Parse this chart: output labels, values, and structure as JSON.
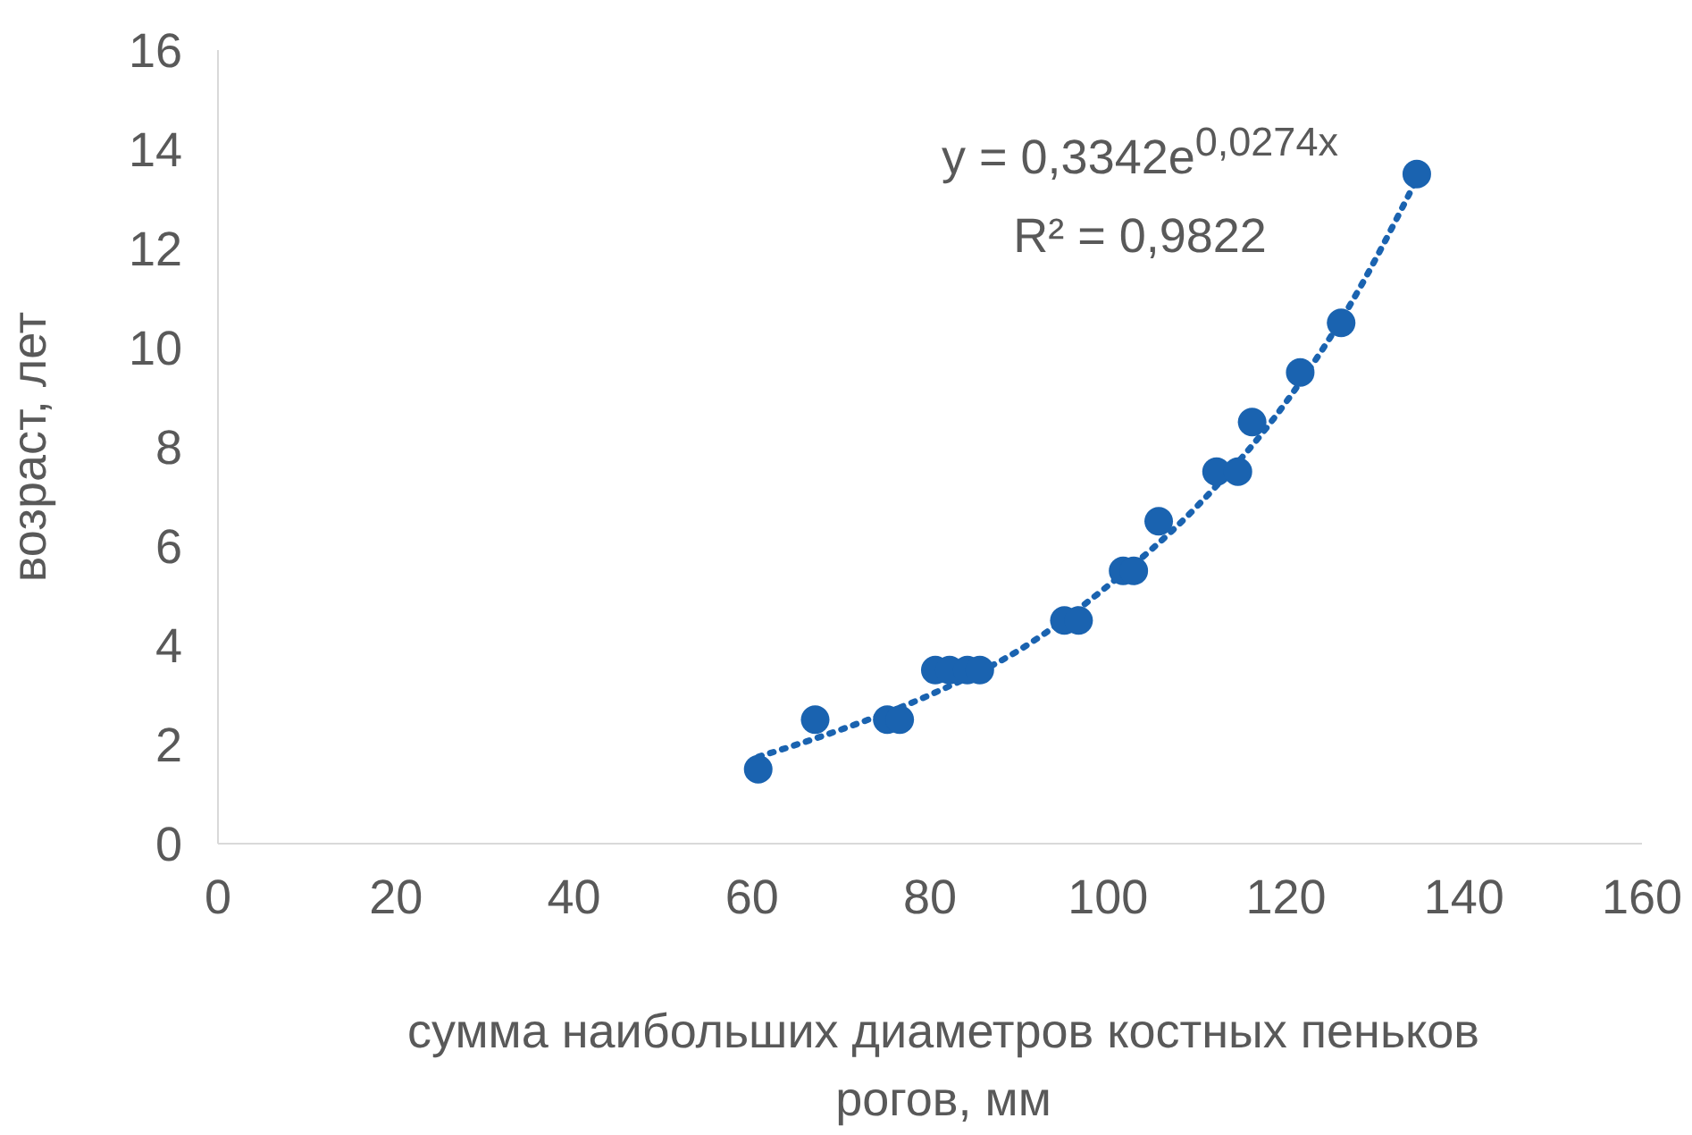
{
  "chart_data": {
    "type": "scatter",
    "xlabel": "сумма наибольших диаметров костных пеньков рогов, мм",
    "ylabel": "возраст, лет",
    "xlim": [
      0,
      160
    ],
    "xticks": [
      0,
      20,
      40,
      60,
      80,
      100,
      120,
      140,
      160
    ],
    "ylim": [
      0,
      16
    ],
    "yticks": [
      0,
      2,
      4,
      6,
      8,
      10,
      12,
      14,
      16
    ],
    "grid": false,
    "legend": false,
    "marker": "circle",
    "annotations": [
      "y = 0,3342e$^{0,0274x}$",
      "R² = 0,9822"
    ],
    "series": [
      {
        "color": "#1a63b0",
        "x": [
          60.7,
          67.1,
          75.2,
          76.6,
          80.6,
          82.2,
          84.2,
          85.6,
          95.1,
          96.7,
          101.7,
          102.9,
          105.7,
          112.2,
          114.6,
          116.2,
          121.6,
          126.2,
          134.7
        ],
        "values": [
          1.5,
          2.5,
          2.5,
          2.5,
          3.5,
          3.5,
          3.5,
          3.5,
          4.5,
          4.5,
          5.5,
          5.5,
          6.5,
          7.5,
          7.5,
          8.5,
          9.5,
          10.5,
          13.5
        ]
      },
      {
        "type": "line",
        "color": "#1a63b0",
        "line_style": "dotted",
        "marker": "none",
        "x": [
          60.7,
          70,
          80,
          90,
          100,
          110,
          120,
          127,
          134.7
        ],
        "values": [
          1.75,
          2.3,
          3.0,
          3.9,
          5.2,
          6.8,
          8.9,
          10.8,
          13.4
        ]
      }
    ]
  }
}
